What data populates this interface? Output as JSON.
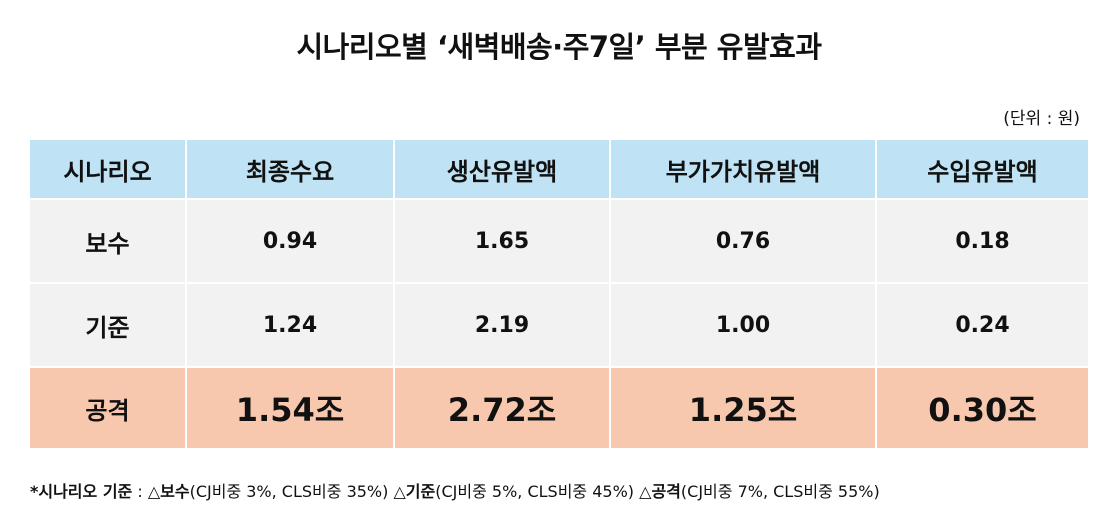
{
  "title": "시나리오별 ‘새벽배송·주7일’ 부분 유발효과",
  "unit": "(단위 : 원)",
  "table": {
    "headers": [
      "시나리오",
      "최종수요",
      "생산유발액",
      "부가가치유발액",
      "수입유발액"
    ],
    "rows": [
      {
        "scenario": "보수",
        "values": [
          "0.94",
          "1.65",
          "0.76",
          "0.18"
        ]
      },
      {
        "scenario": "기준",
        "values": [
          "1.24",
          "2.19",
          "1.00",
          "0.24"
        ]
      },
      {
        "scenario": "공격",
        "values": [
          "1.54조",
          "2.72조",
          "1.25조",
          "0.30조"
        ]
      }
    ]
  },
  "footnote": {
    "prefix": "*시나리오 기준",
    "sep": " : ",
    "items": [
      {
        "mark": "△",
        "name": "보수",
        "detail": "(CJ비중 3%, CLS비중 35%)"
      },
      {
        "mark": "△",
        "name": "기준",
        "detail": "(CJ비중 5%, CLS비중 45%)"
      },
      {
        "mark": "△",
        "name": "공격",
        "detail": "(CJ비중 7%, CLS비중 55%)"
      }
    ]
  }
}
